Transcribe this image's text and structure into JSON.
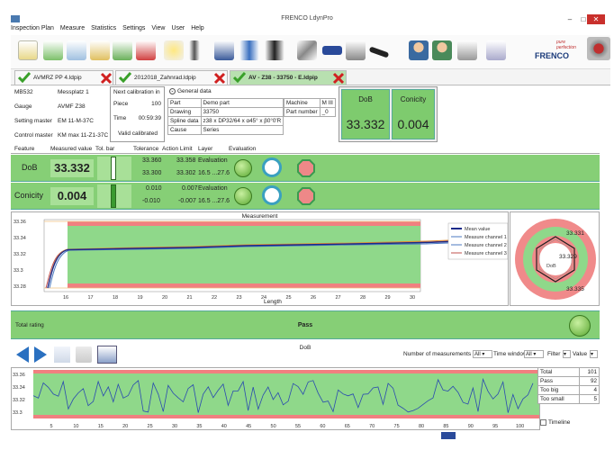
{
  "window": {
    "title": "FRENCO LdynPro",
    "min": "–",
    "max": "□",
    "close": "✕"
  },
  "menu": [
    "Inspection Plan",
    "Measure",
    "Statistics",
    "Settings",
    "View",
    "User",
    "Help"
  ],
  "logo": {
    "tagline": "pure perfection",
    "brand": "FRENCO"
  },
  "tabs": [
    {
      "label": "AVMRZ PP 4.ldpip"
    },
    {
      "label": "2012018_Zahnrad.ldpip"
    },
    {
      "label": "AV - Z38 - 33750 - E.ldpip"
    }
  ],
  "info": {
    "left": [
      [
        "MB532",
        "Messplatz 1"
      ],
      [
        "Gauge",
        "AVMF Z38"
      ],
      [
        "Setting master",
        "EM 11-M-37C"
      ],
      [
        "Control master",
        "KM max 11-Z1-37C"
      ]
    ],
    "calibration": {
      "header": "Next calibration in",
      "piece_label": "Piece",
      "piece_value": "100",
      "time_label": "Time",
      "time_value": "00:59:39",
      "valid": "Valid calibrated"
    },
    "general_label": "General data",
    "general": [
      [
        "Part",
        "Demo part"
      ],
      [
        "Drawing",
        "33750"
      ],
      [
        "Spline data",
        "z38 x DP32/64 x α45° x β0°0'R"
      ],
      [
        "Cause",
        "Series"
      ]
    ],
    "machine": [
      [
        "Machine",
        "M III"
      ],
      [
        "Part number",
        "_0"
      ]
    ]
  },
  "summary": [
    {
      "label": "DoB",
      "value": "33.332"
    },
    {
      "label": "Conicity",
      "value": "0.004"
    }
  ],
  "feature_headers": [
    "Feature",
    "Measured value",
    "Tol. bar",
    "Tolerance",
    "Action Limit",
    "Layer",
    "Evaluation"
  ],
  "features": [
    {
      "name": "DoB",
      "value": "33.332",
      "tol_hi": "33.360",
      "tol_lo": "33.300",
      "act_hi": "33.358",
      "act_lo": "33.302",
      "layer_top": "Evaluation",
      "layer_bot": "16.5 ...27.6"
    },
    {
      "name": "Conicity",
      "value": "0.004",
      "tol_hi": "0.010",
      "tol_lo": "-0.010",
      "act_hi": "0.007",
      "act_lo": "-0.007",
      "layer_top": "Evaluation",
      "layer_bot": "16.5 ...27.6"
    }
  ],
  "measurement_chart": {
    "title": "Measurement",
    "xlabel": "Length",
    "yticks": [
      "33.36",
      "33.34",
      "33.32",
      "33.3",
      "33.28"
    ],
    "xticks": [
      "16",
      "17",
      "18",
      "19",
      "20",
      "21",
      "22",
      "23",
      "24",
      "25",
      "26",
      "27",
      "28",
      "29",
      "30"
    ],
    "legend": [
      "Mean value",
      "Measure channel 1",
      "Measure channel 2",
      "Measure channel 3"
    ],
    "colors": {
      "mean": "#1a2a8a",
      "ch1": "#c0504d",
      "ch2": "#4b7ac0",
      "ch3": "#e08a30",
      "tol": "#f08080",
      "green": "#8fd88a"
    }
  },
  "radar": {
    "labels": [
      "33.331",
      "33.329",
      "33.335"
    ],
    "center": "DoB"
  },
  "total_rating": {
    "label": "Total rating",
    "value": "Pass"
  },
  "history": {
    "title": "DoB",
    "num_label": "Number of measurements",
    "num_value": "All",
    "window_label": "Time window",
    "window_value": "All",
    "filter_label": "Filter",
    "value_label": "Value",
    "yticks": [
      "33.36",
      "33.34",
      "33.32",
      "33.3"
    ],
    "xticks": [
      "5",
      "10",
      "15",
      "20",
      "25",
      "30",
      "35",
      "40",
      "45",
      "50",
      "55",
      "60",
      "65",
      "70",
      "75",
      "80",
      "85",
      "90",
      "95",
      "100"
    ],
    "timeline": "Timeline"
  },
  "stats": [
    [
      "Total",
      "101"
    ],
    [
      "Pass",
      "92"
    ],
    [
      "Too big",
      "4"
    ],
    [
      "Too small",
      "5"
    ]
  ]
}
